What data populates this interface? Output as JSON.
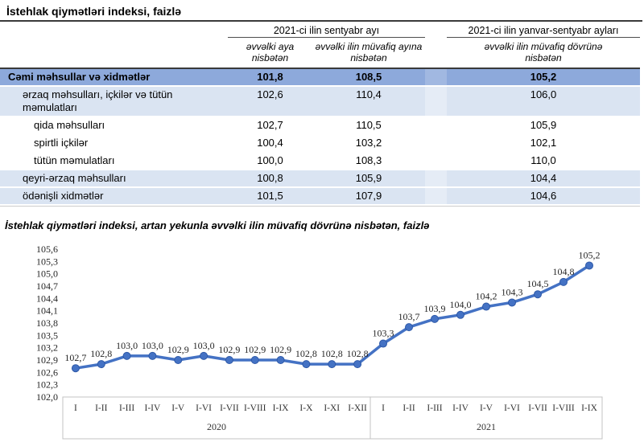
{
  "page": {
    "title": "İstehlak qiymətləri indeksi, faizlə"
  },
  "colors": {
    "accent_line": "#4472C4",
    "row_highlight": "#8DA9DB",
    "row_band": "#DAE4F2"
  },
  "table": {
    "group_headers": [
      {
        "label": "2021-ci ilin sentyabr ayı"
      },
      {
        "label": "2021-ci ilin yanvar-sentyabr ayları"
      }
    ],
    "col_headers": [
      "əvvəlki aya nisbətən",
      "əvvəlki ilin müvafiq ayına nisbətən",
      "əvvəlki ilin müvafiq dövrünə nisbətən"
    ],
    "rows": [
      {
        "label": "Cəmi məhsullar və xidmətlər",
        "values": [
          "101,8",
          "108,5",
          "105,2"
        ],
        "style": "total",
        "indent": 0
      },
      {
        "label": "ərzaq məhsulları, içkilər və tütün məmulatları",
        "values": [
          "102,6",
          "110,4",
          "106,0"
        ],
        "style": "band",
        "indent": 1
      },
      {
        "label": "qida məhsulları",
        "values": [
          "102,7",
          "110,5",
          "105,9"
        ],
        "style": "plain",
        "indent": 2
      },
      {
        "label": "spirtli içkilər",
        "values": [
          "100,4",
          "103,2",
          "102,1"
        ],
        "style": "plain",
        "indent": 2
      },
      {
        "label": "tütün məmulatları",
        "values": [
          "100,0",
          "108,3",
          "110,0"
        ],
        "style": "plain",
        "indent": 2
      },
      {
        "label": "qeyri-ərzaq məhsulları",
        "values": [
          "100,8",
          "105,9",
          "104,4"
        ],
        "style": "band",
        "indent": 1
      },
      {
        "label": "ödənişli xidmətlər",
        "values": [
          "101,5",
          "107,9",
          "104,6"
        ],
        "style": "band",
        "indent": 1
      }
    ]
  },
  "chart_data": {
    "type": "line",
    "title": "İstehlak qiymətləri indeksi, artan yekunla əvvəlki ilin müvafiq dövrünə nisbətən, faizlə",
    "ylim": [
      102.0,
      105.6
    ],
    "ytick_step": 0.3,
    "yticks": [
      "105,6",
      "105,3",
      "105,0",
      "104,7",
      "104,4",
      "104,1",
      "103,8",
      "103,5",
      "103,2",
      "102,9",
      "102,6",
      "102,3",
      "102,0"
    ],
    "grid": false,
    "legend": false,
    "line_color": "#4472C4",
    "groups": [
      {
        "year": "2020",
        "categories": [
          "I",
          "I-II",
          "I-III",
          "I-IV",
          "I-V",
          "I-VI",
          "I-VII",
          "I-VIII",
          "I-IX",
          "I-X",
          "I-XI",
          "I-XII"
        ],
        "values": [
          102.7,
          102.8,
          103.0,
          103.0,
          102.9,
          103.0,
          102.9,
          102.9,
          102.9,
          102.8,
          102.8,
          102.8
        ]
      },
      {
        "year": "2021",
        "categories": [
          "I",
          "I-II",
          "I-III",
          "I-IV",
          "I-V",
          "I-VI",
          "I-VII",
          "I-VIII",
          "I-IX"
        ],
        "values": [
          103.3,
          103.7,
          103.9,
          104.0,
          104.2,
          104.3,
          104.5,
          104.8,
          105.2
        ]
      }
    ]
  }
}
